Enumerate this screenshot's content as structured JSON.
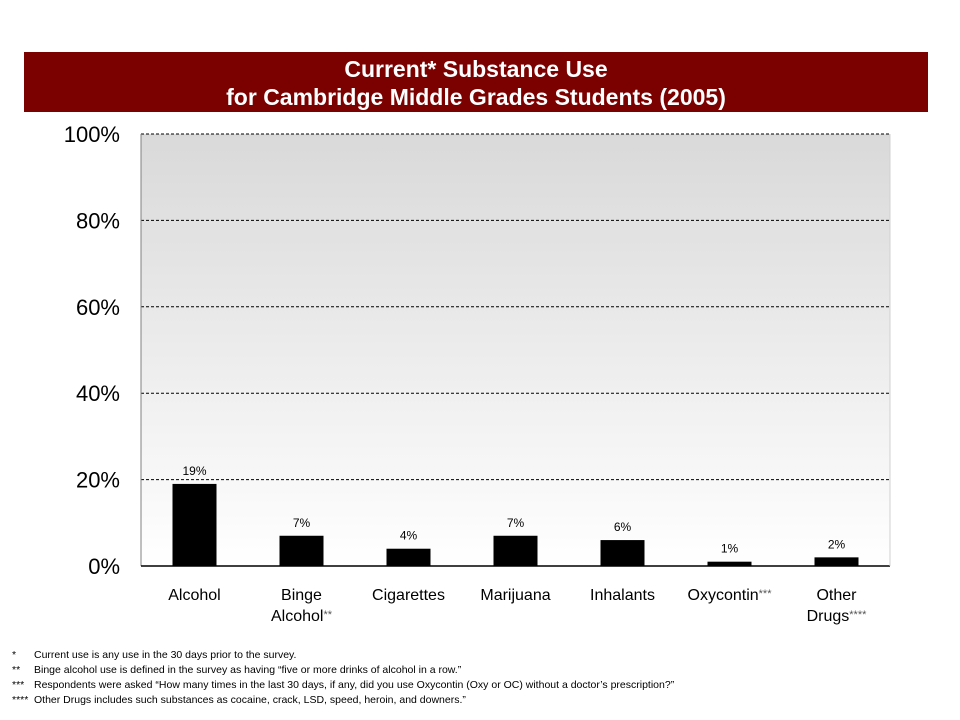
{
  "title": {
    "line1": "Current* Substance Use",
    "line2": "for Cambridge Middle Grades Students (2005)"
  },
  "colors": {
    "title_bar": "#7b0000",
    "bar": "#000000",
    "plot_top": "#d9d9d9",
    "plot_bottom": "#ffffff"
  },
  "chart_data": {
    "type": "bar",
    "title": "Current* Substance Use for Cambridge Middle Grades Students (2005)",
    "categories": [
      {
        "lines": [
          "Alcohol"
        ],
        "mark": ""
      },
      {
        "lines": [
          "Binge",
          "Alcohol"
        ],
        "mark": "**"
      },
      {
        "lines": [
          "Cigarettes"
        ],
        "mark": ""
      },
      {
        "lines": [
          "Marijuana"
        ],
        "mark": ""
      },
      {
        "lines": [
          "Inhalants"
        ],
        "mark": ""
      },
      {
        "lines": [
          "Oxycontin"
        ],
        "mark": "***"
      },
      {
        "lines": [
          "Other",
          "Drugs"
        ],
        "mark": "****"
      }
    ],
    "values": [
      19,
      7,
      4,
      7,
      6,
      1,
      2
    ],
    "data_labels": [
      "19%",
      "7%",
      "4%",
      "7%",
      "6%",
      "1%",
      "2%"
    ],
    "ylim": [
      0,
      100
    ],
    "yticks": [
      0,
      20,
      40,
      60,
      80,
      100
    ],
    "ytick_labels": [
      "0%",
      "20%",
      "40%",
      "60%",
      "80%",
      "100%"
    ],
    "xlabel": "",
    "ylabel": "",
    "grid": "dashed horizontal",
    "legend": "none"
  },
  "footnotes": [
    {
      "mark": "*",
      "text": "Current  use is any use in the 30 days prior to the survey."
    },
    {
      "mark": "**",
      "text": "Binge alcohol use is defined in the survey as having “five or more drinks of alcohol in a row.”"
    },
    {
      "mark": "***",
      "text": "Respondents were asked “How many times in the last 30 days, if any, did you use Oxycontin (Oxy or OC) without a doctor’s prescription?”"
    },
    {
      "mark": "****",
      "text": "Other Drugs includes such substances as cocaine, crack, LSD, speed, heroin, and downers.”"
    }
  ]
}
